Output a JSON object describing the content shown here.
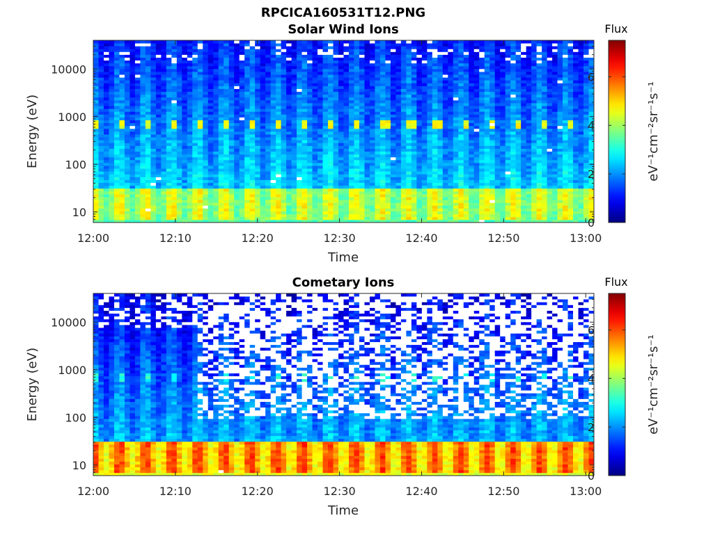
{
  "figure": {
    "title": "RPCICA160531T12.PNG"
  },
  "chart_data": [
    {
      "type": "heatmap",
      "title": "Solar Wind Ions",
      "xlabel": "Time",
      "ylabel": "Energy (eV)",
      "x_ticks": [
        "12:00",
        "12:10",
        "12:20",
        "12:30",
        "12:40",
        "12:50",
        "13:00"
      ],
      "x_range": [
        "12:00",
        "13:01"
      ],
      "y_ticks": [
        10,
        100,
        1000,
        10000
      ],
      "y_tick_labels": [
        "10",
        "100",
        "1000",
        "10000"
      ],
      "y_range": [
        6,
        40000
      ],
      "y_scale": "log",
      "colorbar": {
        "title": "Flux",
        "label": "eV⁻¹cm⁻²sr⁻¹s⁻¹",
        "ticks": [
          "0",
          "2",
          "4",
          "6"
        ],
        "range": [
          0,
          7.5
        ],
        "colormap": "jet"
      },
      "features": {
        "sweep_period_min": 3.2,
        "peak_energy_eV": 700,
        "low_energy_band_eV": [
          8,
          25
        ],
        "low_energy_level": 4.3,
        "peak_level": 4.6,
        "background_high_energy_level": 1.1,
        "data_gaps": "sparse"
      }
    },
    {
      "type": "heatmap",
      "title": "Cometary Ions",
      "xlabel": "Time",
      "ylabel": "Energy (eV)",
      "x_ticks": [
        "12:00",
        "12:10",
        "12:20",
        "12:30",
        "12:40",
        "12:50",
        "13:00"
      ],
      "x_range": [
        "12:00",
        "13:01"
      ],
      "y_ticks": [
        10,
        100,
        1000,
        10000
      ],
      "y_tick_labels": [
        "10",
        "100",
        "1000",
        "10000"
      ],
      "y_range": [
        6,
        40000
      ],
      "y_scale": "log",
      "colorbar": {
        "title": "Flux",
        "label": "eV⁻¹cm⁻²sr⁻¹s⁻¹",
        "ticks": [
          "0",
          "2",
          "4",
          "6"
        ],
        "range": [
          0,
          7.5
        ],
        "colormap": "jet"
      },
      "features": {
        "sweep_period_min": 3.2,
        "peak_energy_eV": 700,
        "low_energy_band_eV": [
          8,
          25
        ],
        "low_energy_level": 5.6,
        "peak_level": 3.0,
        "background_high_energy_level": 0.8,
        "data_gaps": "dense above 100 eV after 12:13"
      }
    }
  ]
}
